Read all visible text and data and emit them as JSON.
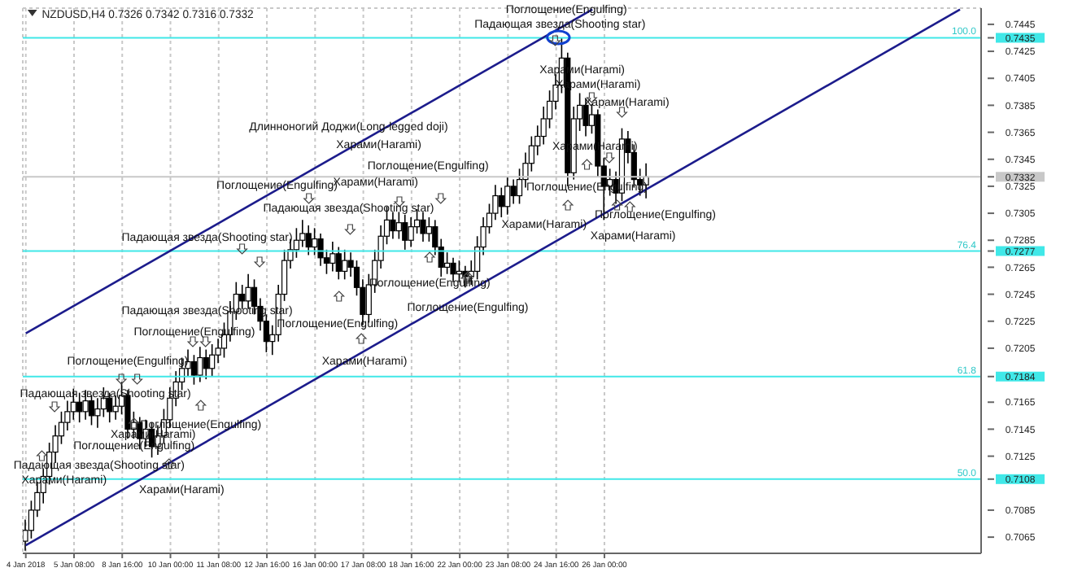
{
  "chart_data": {
    "type": "candlestick",
    "title": "NZDUSD,H4  0.7326 0.7342 0.7316 0.7332",
    "categories": [
      "4 Jan 2018",
      null,
      null,
      null,
      null,
      null,
      null,
      null,
      "5 Jan 08:00",
      null,
      null,
      null,
      null,
      null,
      null,
      null,
      "8 Jan 16:00",
      null,
      null,
      null,
      null,
      null,
      null,
      null,
      "10 Jan 00:00",
      null,
      null,
      null,
      null,
      null,
      null,
      null,
      "11 Jan 08:00",
      null,
      null,
      null,
      null,
      null,
      null,
      null,
      "12 Jan 16:00",
      null,
      null,
      null,
      null,
      null,
      null,
      null,
      "16 Jan 00:00",
      null,
      null,
      null,
      null,
      null,
      null,
      null,
      "17 Jan 08:00",
      null,
      null,
      null,
      null,
      null,
      null,
      null,
      "18 Jan 16:00",
      null,
      null,
      null,
      null,
      null,
      null,
      null,
      "22 Jan 00:00",
      null,
      null,
      null,
      null,
      null,
      null,
      null,
      "23 Jan 08:00",
      null,
      null,
      null,
      null,
      null,
      null,
      null,
      "24 Jan 16:00",
      null,
      null,
      null,
      null,
      null,
      null,
      null,
      "26 Jan 00:00",
      null,
      null,
      null,
      null,
      null,
      null,
      null,
      null,
      null,
      null,
      null,
      null,
      null,
      null,
      null,
      null,
      null,
      null,
      null,
      null,
      null,
      null,
      null,
      null,
      null,
      null,
      null,
      null,
      null,
      null,
      null,
      null,
      null,
      null,
      null,
      null,
      null,
      null,
      null,
      null,
      null,
      null,
      null,
      null,
      null,
      null,
      null,
      null,
      null,
      null,
      null,
      null,
      null,
      null,
      null,
      null,
      null,
      null,
      null,
      null,
      null,
      null
    ],
    "ohlc": [
      [
        0.7062,
        0.7078,
        0.7055,
        0.707
      ],
      [
        0.707,
        0.7092,
        0.7064,
        0.7085
      ],
      [
        0.7085,
        0.7106,
        0.708,
        0.7098
      ],
      [
        0.7098,
        0.7116,
        0.709,
        0.711
      ],
      [
        0.711,
        0.7135,
        0.7104,
        0.7128
      ],
      [
        0.7128,
        0.7148,
        0.712,
        0.714
      ],
      [
        0.714,
        0.7158,
        0.7134,
        0.715
      ],
      [
        0.715,
        0.7166,
        0.7144,
        0.7158
      ],
      [
        0.7158,
        0.7175,
        0.7152,
        0.7165
      ],
      [
        0.7165,
        0.7172,
        0.715,
        0.7158
      ],
      [
        0.7158,
        0.7174,
        0.7152,
        0.7166
      ],
      [
        0.7166,
        0.717,
        0.7148,
        0.7155
      ],
      [
        0.7155,
        0.7168,
        0.7146,
        0.716
      ],
      [
        0.716,
        0.7176,
        0.7154,
        0.7168
      ],
      [
        0.7168,
        0.7172,
        0.715,
        0.7158
      ],
      [
        0.7158,
        0.717,
        0.7152,
        0.7162
      ],
      [
        0.7162,
        0.718,
        0.7156,
        0.717
      ],
      [
        0.717,
        0.7174,
        0.7138,
        0.7145
      ],
      [
        0.7145,
        0.7158,
        0.7138,
        0.715
      ],
      [
        0.715,
        0.7154,
        0.713,
        0.7138
      ],
      [
        0.7138,
        0.7152,
        0.7132,
        0.7145
      ],
      [
        0.7145,
        0.715,
        0.7124,
        0.7132
      ],
      [
        0.7132,
        0.7148,
        0.7126,
        0.714
      ],
      [
        0.714,
        0.716,
        0.7134,
        0.7152
      ],
      [
        0.7152,
        0.7176,
        0.7146,
        0.7168
      ],
      [
        0.7168,
        0.7188,
        0.7162,
        0.718
      ],
      [
        0.718,
        0.7198,
        0.7174,
        0.719
      ],
      [
        0.719,
        0.7204,
        0.7184,
        0.7195
      ],
      [
        0.7195,
        0.72,
        0.7178,
        0.7185
      ],
      [
        0.7185,
        0.7206,
        0.718,
        0.7198
      ],
      [
        0.7198,
        0.7204,
        0.7182,
        0.719
      ],
      [
        0.719,
        0.7208,
        0.7184,
        0.72
      ],
      [
        0.72,
        0.7212,
        0.7194,
        0.7205
      ],
      [
        0.7205,
        0.7224,
        0.7198,
        0.7215
      ],
      [
        0.7215,
        0.724,
        0.721,
        0.7232
      ],
      [
        0.7232,
        0.7254,
        0.7226,
        0.7245
      ],
      [
        0.7245,
        0.7252,
        0.7234,
        0.724
      ],
      [
        0.724,
        0.726,
        0.7234,
        0.725
      ],
      [
        0.725,
        0.7256,
        0.723,
        0.7236
      ],
      [
        0.7236,
        0.7242,
        0.7218,
        0.7225
      ],
      [
        0.7225,
        0.723,
        0.7202,
        0.721
      ],
      [
        0.721,
        0.7222,
        0.72,
        0.7215
      ],
      [
        0.7215,
        0.7252,
        0.721,
        0.7245
      ],
      [
        0.7245,
        0.7278,
        0.724,
        0.727
      ],
      [
        0.727,
        0.7286,
        0.7264,
        0.7278
      ],
      [
        0.7278,
        0.7294,
        0.7272,
        0.7285
      ],
      [
        0.7285,
        0.73,
        0.728,
        0.729
      ],
      [
        0.729,
        0.7296,
        0.7274,
        0.728
      ],
      [
        0.728,
        0.7294,
        0.7274,
        0.7286
      ],
      [
        0.7286,
        0.729,
        0.7266,
        0.7272
      ],
      [
        0.7272,
        0.7278,
        0.726,
        0.7268
      ],
      [
        0.7268,
        0.7284,
        0.7262,
        0.7275
      ],
      [
        0.7275,
        0.728,
        0.7256,
        0.7262
      ],
      [
        0.7262,
        0.7278,
        0.7256,
        0.727
      ],
      [
        0.727,
        0.7276,
        0.7258,
        0.7265
      ],
      [
        0.7265,
        0.727,
        0.7244,
        0.725
      ],
      [
        0.725,
        0.7256,
        0.7222,
        0.723
      ],
      [
        0.723,
        0.726,
        0.7224,
        0.7252
      ],
      [
        0.7252,
        0.7278,
        0.7246,
        0.727
      ],
      [
        0.727,
        0.7296,
        0.7264,
        0.7288
      ],
      [
        0.7288,
        0.731,
        0.7282,
        0.73
      ],
      [
        0.73,
        0.7306,
        0.7286,
        0.7292
      ],
      [
        0.7292,
        0.7306,
        0.7286,
        0.7298
      ],
      [
        0.7298,
        0.7304,
        0.7278,
        0.7285
      ],
      [
        0.7285,
        0.7302,
        0.728,
        0.7295
      ],
      [
        0.7295,
        0.7308,
        0.729,
        0.73
      ],
      [
        0.73,
        0.7306,
        0.7284,
        0.729
      ],
      [
        0.729,
        0.7302,
        0.7284,
        0.7295
      ],
      [
        0.7295,
        0.73,
        0.7274,
        0.728
      ],
      [
        0.728,
        0.7286,
        0.7258,
        0.7265
      ],
      [
        0.7265,
        0.7276,
        0.726,
        0.7268
      ],
      [
        0.7268,
        0.7272,
        0.7254,
        0.726
      ],
      [
        0.726,
        0.727,
        0.7254,
        0.7262
      ],
      [
        0.7262,
        0.7266,
        0.725,
        0.7258
      ],
      [
        0.7258,
        0.727,
        0.7252,
        0.7262
      ],
      [
        0.7262,
        0.7288,
        0.7256,
        0.728
      ],
      [
        0.728,
        0.7302,
        0.7274,
        0.7295
      ],
      [
        0.7295,
        0.7312,
        0.729,
        0.7305
      ],
      [
        0.7305,
        0.7326,
        0.73,
        0.7318
      ],
      [
        0.7318,
        0.7324,
        0.7302,
        0.731
      ],
      [
        0.731,
        0.7332,
        0.7304,
        0.7325
      ],
      [
        0.7325,
        0.733,
        0.7312,
        0.7318
      ],
      [
        0.7318,
        0.7338,
        0.7312,
        0.733
      ],
      [
        0.733,
        0.735,
        0.7324,
        0.7342
      ],
      [
        0.7342,
        0.7362,
        0.7336,
        0.7355
      ],
      [
        0.7355,
        0.737,
        0.7348,
        0.7362
      ],
      [
        0.7362,
        0.7384,
        0.7356,
        0.7375
      ],
      [
        0.7375,
        0.7396,
        0.7368,
        0.7388
      ],
      [
        0.7388,
        0.7408,
        0.7382,
        0.74
      ],
      [
        0.74,
        0.7435,
        0.7394,
        0.742
      ],
      [
        0.742,
        0.7424,
        0.7325,
        0.7335
      ],
      [
        0.7335,
        0.7384,
        0.733,
        0.7375
      ],
      [
        0.7375,
        0.7394,
        0.7366,
        0.7385
      ],
      [
        0.7385,
        0.739,
        0.7362,
        0.737
      ],
      [
        0.737,
        0.7386,
        0.7364,
        0.7378
      ],
      [
        0.7378,
        0.7382,
        0.7332,
        0.734
      ],
      [
        0.734,
        0.7346,
        0.73,
        0.7325
      ],
      [
        0.7325,
        0.7338,
        0.7318,
        0.733
      ],
      [
        0.733,
        0.7336,
        0.7312,
        0.732
      ],
      [
        0.732,
        0.7368,
        0.7314,
        0.736
      ],
      [
        0.736,
        0.7366,
        0.7342,
        0.735
      ],
      [
        0.735,
        0.7356,
        0.7324,
        0.733
      ],
      [
        0.733,
        0.7338,
        0.7318,
        0.7326
      ],
      [
        0.7326,
        0.7342,
        0.7316,
        0.7332
      ],
      null,
      null,
      null,
      null,
      null,
      null,
      null,
      null,
      null,
      null,
      null,
      null,
      null,
      null,
      null,
      null,
      null,
      null,
      null,
      null,
      null,
      null,
      null,
      null,
      null,
      null,
      null,
      null,
      null,
      null,
      null,
      null,
      null,
      null,
      null,
      null,
      null,
      null,
      null,
      null,
      null,
      null,
      null,
      null,
      null,
      null,
      null,
      null,
      null,
      null,
      null,
      null,
      null,
      null,
      null
    ],
    "series": [
      {
        "type": "line",
        "color": "#1c1c8c",
        "values": [
          0.7216,
          null,
          null,
          null,
          null,
          null,
          null,
          null,
          null,
          null,
          null,
          null,
          null,
          null,
          null,
          null,
          null,
          null,
          null,
          null,
          null,
          null,
          null,
          null,
          null,
          null,
          null,
          null,
          null,
          null,
          null,
          null,
          null,
          null,
          null,
          null,
          null,
          null,
          null,
          null,
          null,
          null,
          null,
          null,
          null,
          null,
          null,
          null,
          null,
          null,
          null,
          null,
          null,
          null,
          null,
          null,
          null,
          null,
          null,
          null,
          null,
          null,
          null,
          null,
          null,
          null,
          null,
          null,
          null,
          null,
          null,
          null,
          null,
          null,
          null,
          null,
          null,
          null,
          null,
          null,
          null,
          null,
          null,
          null,
          null,
          null,
          null,
          null,
          null,
          null,
          null,
          null,
          null,
          null,
          0.7456,
          null,
          null,
          null,
          null,
          null,
          null,
          null,
          null,
          null,
          null,
          null,
          null,
          null,
          null,
          null,
          null,
          null,
          null,
          null,
          null,
          null,
          null,
          null,
          null,
          null,
          null,
          null,
          null,
          null,
          null,
          null,
          null,
          null,
          null,
          null,
          null,
          null,
          null,
          null,
          null,
          null,
          null,
          null,
          null,
          null,
          null,
          null,
          null,
          null,
          null,
          null,
          null,
          null,
          null,
          null,
          null,
          null,
          null,
          null,
          null,
          null,
          null,
          null,
          null
        ]
      },
      {
        "type": "line",
        "color": "#1c1c8c",
        "values": [
          0.7059,
          null,
          null,
          null,
          null,
          null,
          null,
          null,
          null,
          null,
          null,
          null,
          null,
          null,
          null,
          null,
          null,
          null,
          null,
          null,
          null,
          null,
          null,
          null,
          null,
          null,
          null,
          null,
          null,
          null,
          null,
          null,
          null,
          null,
          null,
          null,
          null,
          null,
          null,
          null,
          null,
          null,
          null,
          null,
          null,
          null,
          null,
          null,
          null,
          null,
          null,
          null,
          null,
          null,
          null,
          null,
          null,
          null,
          null,
          null,
          null,
          null,
          null,
          null,
          null,
          null,
          null,
          null,
          null,
          null,
          null,
          null,
          null,
          null,
          null,
          null,
          null,
          null,
          null,
          null,
          null,
          null,
          null,
          null,
          null,
          null,
          null,
          null,
          null,
          null,
          null,
          null,
          null,
          null,
          null,
          null,
          null,
          null,
          null,
          null,
          null,
          null,
          null,
          null,
          null,
          null,
          null,
          null,
          null,
          null,
          null,
          null,
          null,
          null,
          null,
          null,
          null,
          null,
          null,
          null,
          null,
          null,
          null,
          null,
          null,
          null,
          null,
          null,
          null,
          null,
          null,
          null,
          null,
          null,
          null,
          null,
          null,
          null,
          null,
          null,
          null,
          null,
          null,
          null,
          null,
          null,
          null,
          null,
          null,
          null,
          null,
          null,
          null,
          null,
          null,
          0.7456,
          null,
          null,
          null
        ]
      }
    ],
    "ylim": [
      0.7053,
      0.7457
    ],
    "yticks": [
      0.7065,
      0.7085,
      {
        "value": 0.7108,
        "label": "0.7108"
      },
      0.7125,
      0.7145,
      0.7165,
      {
        "value": 0.7184,
        "label": "0.7184"
      },
      0.7205,
      0.7225,
      0.7245,
      0.7265,
      {
        "value": 0.7277,
        "label": "0.7277"
      },
      0.7285,
      0.7305,
      0.7325,
      {
        "value": 0.7332,
        "label": "0.7332"
      },
      0.7345,
      0.7365,
      0.7385,
      0.7405,
      0.7425,
      {
        "value": 0.7435,
        "label": "0.7435"
      },
      0.7445
    ],
    "ref_lines": [
      {
        "axis": "y",
        "value": 0.7435,
        "color": "#40e8e8"
      },
      {
        "axis": "y",
        "value": 0.7277,
        "color": "#40e8e8"
      },
      {
        "axis": "y",
        "value": 0.7184,
        "color": "#40e8e8"
      },
      {
        "axis": "y",
        "value": 0.7108,
        "color": "#40e8e8"
      },
      {
        "axis": "y",
        "value": 0.7332,
        "color": "#c8c8c8"
      }
    ],
    "grid": true,
    "annotations": [
      "Поглощение(Engulfing)",
      "Падающая звезда(Shooting star)",
      "Харами(Harami)",
      "Харами(Harami)",
      "Харами(Harami)",
      "Длинноногий Доджи(Long-legged doji)",
      "Харами(Harami)",
      "Харами(Harami)",
      "Поглощение(Engulfing)",
      "Харами(Harami)",
      "Поглощение(Engulfing)",
      "Поглощение(Engulfing)",
      "Падающая звезда(Shooting star)",
      "Падающая звезда(Shooting star)",
      "Харами(Harami)",
      "Поглощение(Engulfing)",
      "Харами(Harami)",
      "Поглощение(Engulfing)",
      "Поглощение(Engulfing)",
      "Падающая звезда(Shooting star)",
      "Поглощение(Engulfing)",
      "Поглощение(Engulfing)",
      "Поглощение(Engulfing)",
      "Харами(Harami)",
      "Падающая звезда(Shooting star)",
      "Поглощение(Engulfing)",
      "Харами(Harami)",
      "Поглощение(Engulfing)",
      "Падающая звезда(Shooting star)",
      "Харами(Harami)",
      "Харами(Harami)",
      {
        "text": "100.0",
        "y": 0.7435
      },
      {
        "text": "76.4",
        "y": 0.7277
      },
      {
        "text": "61.8",
        "y": 0.7184
      },
      {
        "text": "50.0",
        "y": 0.7108
      }
    ]
  }
}
